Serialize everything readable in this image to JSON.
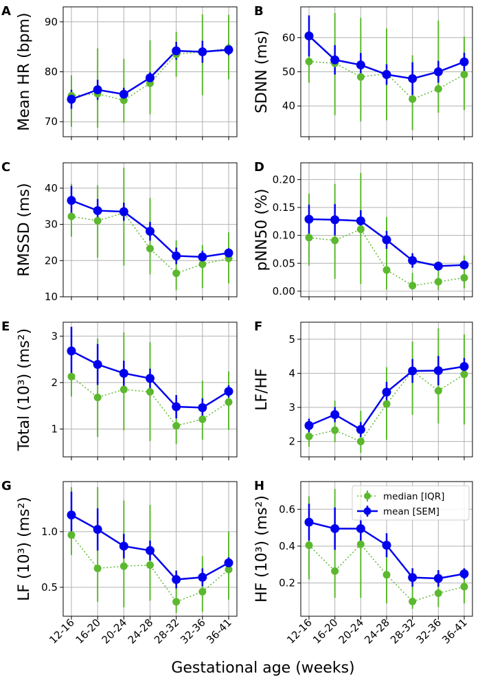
{
  "figure": {
    "xlabel": "Gestational age (weeks)",
    "legend": {
      "median_label": "median [IQR]",
      "mean_label": "mean [SEM]",
      "placement": "upper-right of panel H"
    },
    "colors": {
      "mean": "#0000ee",
      "median": "#5cb82e",
      "grid": "#b0b0b0"
    }
  },
  "chart_data": [
    {
      "panel": "A",
      "type": "line",
      "ylabel": "Mean HR (bpm)",
      "categories": [
        "12-16",
        "16-20",
        "20-24",
        "24-28",
        "28-32",
        "32-36",
        "36-41"
      ],
      "ylim": [
        67,
        93
      ],
      "yticks": [
        70,
        80,
        90
      ],
      "ytick_labels": [
        "70",
        "80",
        "90"
      ],
      "mean": [
        74.5,
        76.4,
        75.5,
        78.8,
        84.2,
        84.0,
        84.4
      ],
      "mean_sem_low": [
        72.6,
        74.4,
        74.2,
        77.7,
        82.4,
        81.8,
        83.3
      ],
      "mean_sem_high": [
        76.4,
        78.4,
        76.8,
        79.9,
        86.0,
        86.2,
        85.5
      ],
      "median": [
        75.2,
        75.6,
        74.3,
        77.7,
        83.5,
        84.0,
        84.7
      ],
      "median_q1": [
        69.0,
        68.8,
        69.8,
        71.5,
        79.0,
        75.3,
        78.5
      ],
      "median_q3": [
        79.3,
        84.7,
        82.6,
        86.3,
        88.0,
        91.5,
        91.4
      ]
    },
    {
      "panel": "B",
      "type": "line",
      "ylabel": "SDNN (ms)",
      "categories": [
        "12-16",
        "16-20",
        "20-24",
        "24-28",
        "28-32",
        "32-36",
        "36-41"
      ],
      "ylim": [
        31,
        69
      ],
      "yticks": [
        40,
        50,
        60
      ],
      "ytick_labels": [
        "40",
        "50",
        "60"
      ],
      "mean": [
        60.5,
        53.5,
        52.0,
        49.2,
        48.0,
        50.0,
        52.9
      ],
      "mean_sem_low": [
        54.5,
        49.2,
        48.5,
        46.2,
        43.2,
        46.8,
        50.2
      ],
      "mean_sem_high": [
        66.5,
        57.8,
        55.5,
        52.2,
        52.8,
        53.2,
        55.6
      ],
      "median": [
        53.0,
        52.5,
        48.5,
        49.5,
        42.0,
        45.0,
        49.2
      ],
      "median_q1": [
        46.8,
        37.3,
        35.5,
        35.8,
        32.9,
        38.0,
        38.8
      ],
      "median_q3": [
        60.6,
        67.2,
        65.8,
        62.7,
        54.8,
        65.0,
        60.3
      ]
    },
    {
      "panel": "C",
      "type": "line",
      "ylabel": "RMSSD (ms)",
      "categories": [
        "12-16",
        "16-20",
        "20-24",
        "24-28",
        "28-32",
        "32-36",
        "36-41"
      ],
      "ylim": [
        10,
        47
      ],
      "yticks": [
        10,
        20,
        30,
        40
      ],
      "ytick_labels": [
        "10",
        "20",
        "30",
        "40"
      ],
      "mean": [
        36.6,
        33.8,
        33.5,
        28.1,
        21.3,
        21.0,
        22.1
      ],
      "mean_sem_low": [
        32.6,
        30.6,
        31.0,
        25.5,
        19.0,
        19.3,
        20.8
      ],
      "mean_sem_high": [
        40.6,
        37.0,
        36.0,
        30.7,
        23.6,
        22.7,
        23.4
      ],
      "median": [
        32.2,
        31.0,
        33.2,
        23.3,
        16.5,
        19.0,
        20.6
      ],
      "median_q1": [
        26.6,
        20.8,
        18.6,
        16.2,
        11.8,
        12.4,
        13.7
      ],
      "median_q3": [
        41.2,
        40.8,
        45.6,
        37.3,
        25.6,
        24.3,
        27.8
      ]
    },
    {
      "panel": "D",
      "type": "line",
      "ylabel": "pNN50 (%)",
      "categories": [
        "12-16",
        "16-20",
        "20-24",
        "24-28",
        "28-32",
        "32-36",
        "36-41"
      ],
      "ylim": [
        -0.01,
        0.23
      ],
      "yticks": [
        0.0,
        0.05,
        0.1,
        0.15,
        0.2
      ],
      "ytick_labels": [
        "0.00",
        "0.05",
        "0.10",
        "0.15",
        "0.20"
      ],
      "mean": [
        0.129,
        0.128,
        0.126,
        0.092,
        0.055,
        0.045,
        0.047
      ],
      "mean_sem_low": [
        0.103,
        0.1,
        0.107,
        0.076,
        0.042,
        0.037,
        0.04
      ],
      "mean_sem_high": [
        0.155,
        0.156,
        0.145,
        0.108,
        0.068,
        0.053,
        0.054
      ],
      "median": [
        0.096,
        0.091,
        0.111,
        0.038,
        0.01,
        0.017,
        0.024
      ],
      "median_q1": [
        0.046,
        0.022,
        0.013,
        0.003,
        0.002,
        0.002,
        0.005
      ],
      "median_q3": [
        0.175,
        0.192,
        0.212,
        0.133,
        0.033,
        0.052,
        0.064
      ]
    },
    {
      "panel": "E",
      "type": "line",
      "ylabel": "Total (10³) (ms²)",
      "categories": [
        "12-16",
        "16-20",
        "20-24",
        "24-28",
        "28-32",
        "32-36",
        "36-41"
      ],
      "ylim": [
        0.4,
        3.3
      ],
      "yticks": [
        1,
        2,
        3
      ],
      "ytick_labels": [
        "1",
        "2",
        "3"
      ],
      "mean": [
        2.68,
        2.39,
        2.2,
        2.09,
        1.48,
        1.46,
        1.81
      ],
      "mean_sem_low": [
        2.16,
        1.95,
        1.93,
        1.88,
        1.23,
        1.26,
        1.68
      ],
      "mean_sem_high": [
        3.2,
        2.83,
        2.47,
        2.3,
        1.73,
        1.66,
        1.94
      ],
      "median": [
        2.13,
        1.68,
        1.85,
        1.8,
        1.07,
        1.21,
        1.58
      ],
      "median_q1": [
        1.7,
        0.83,
        0.97,
        0.74,
        0.68,
        0.77,
        0.98
      ],
      "median_q3": [
        3.1,
        2.95,
        3.08,
        2.87,
        1.73,
        2.04,
        2.24
      ]
    },
    {
      "panel": "F",
      "type": "line",
      "ylabel": "LF/HF",
      "categories": [
        "12-16",
        "16-20",
        "20-24",
        "24-28",
        "28-32",
        "32-36",
        "36-41"
      ],
      "ylim": [
        1.55,
        5.5
      ],
      "yticks": [
        2,
        3,
        4,
        5
      ],
      "ytick_labels": [
        "2",
        "3",
        "4",
        "5"
      ],
      "mean": [
        2.47,
        2.79,
        2.35,
        3.45,
        4.07,
        4.08,
        4.2
      ],
      "mean_sem_low": [
        2.27,
        2.57,
        2.13,
        3.15,
        3.72,
        3.65,
        3.95
      ],
      "mean_sem_high": [
        2.67,
        3.01,
        2.57,
        3.75,
        4.42,
        4.51,
        4.45
      ],
      "median": [
        2.15,
        2.33,
        2.0,
        3.1,
        4.07,
        3.49,
        3.97
      ],
      "median_q1": [
        1.85,
        1.98,
        1.67,
        2.05,
        2.78,
        2.53,
        2.5
      ],
      "median_q3": [
        2.62,
        3.2,
        2.9,
        4.18,
        4.93,
        5.32,
        5.14
      ]
    },
    {
      "panel": "G",
      "type": "line",
      "ylabel": "LF (10³) (ms²)",
      "categories": [
        "12-16",
        "16-20",
        "20-24",
        "24-28",
        "28-32",
        "32-36",
        "36-41"
      ],
      "ylim": [
        0.24,
        1.45
      ],
      "yticks": [
        0.5,
        1.0
      ],
      "ytick_labels": [
        "0.5",
        "1.0"
      ],
      "mean": [
        1.15,
        1.02,
        0.87,
        0.83,
        0.57,
        0.59,
        0.72
      ],
      "mean_sem_low": [
        0.94,
        0.83,
        0.76,
        0.74,
        0.49,
        0.51,
        0.67
      ],
      "mean_sem_high": [
        1.36,
        1.21,
        0.98,
        0.92,
        0.65,
        0.67,
        0.77
      ],
      "median": [
        0.97,
        0.67,
        0.69,
        0.7,
        0.37,
        0.46,
        0.66
      ],
      "median_q1": [
        0.79,
        0.37,
        0.32,
        0.38,
        0.27,
        0.28,
        0.39
      ],
      "median_q3": [
        1.4,
        1.4,
        1.28,
        1.24,
        0.65,
        0.78,
        1.0
      ]
    },
    {
      "panel": "H",
      "type": "line",
      "ylabel": "HF (10³) (ms²)",
      "categories": [
        "12-16",
        "16-20",
        "20-24",
        "24-28",
        "28-32",
        "32-36",
        "36-41"
      ],
      "ylim": [
        0.02,
        0.75
      ],
      "yticks": [
        0.2,
        0.4,
        0.6
      ],
      "ytick_labels": [
        "0.2",
        "0.4",
        "0.6"
      ],
      "mean": [
        0.53,
        0.495,
        0.495,
        0.405,
        0.23,
        0.225,
        0.25
      ],
      "mean_sem_low": [
        0.43,
        0.38,
        0.42,
        0.34,
        0.18,
        0.18,
        0.22
      ],
      "mean_sem_high": [
        0.63,
        0.61,
        0.57,
        0.47,
        0.28,
        0.27,
        0.28
      ],
      "median": [
        0.405,
        0.265,
        0.41,
        0.245,
        0.1,
        0.145,
        0.18
      ],
      "median_q1": [
        0.22,
        0.12,
        0.12,
        0.09,
        0.06,
        0.07,
        0.09
      ],
      "median_q3": [
        0.67,
        0.71,
        0.72,
        0.42,
        0.28,
        0.25,
        0.28
      ]
    }
  ]
}
